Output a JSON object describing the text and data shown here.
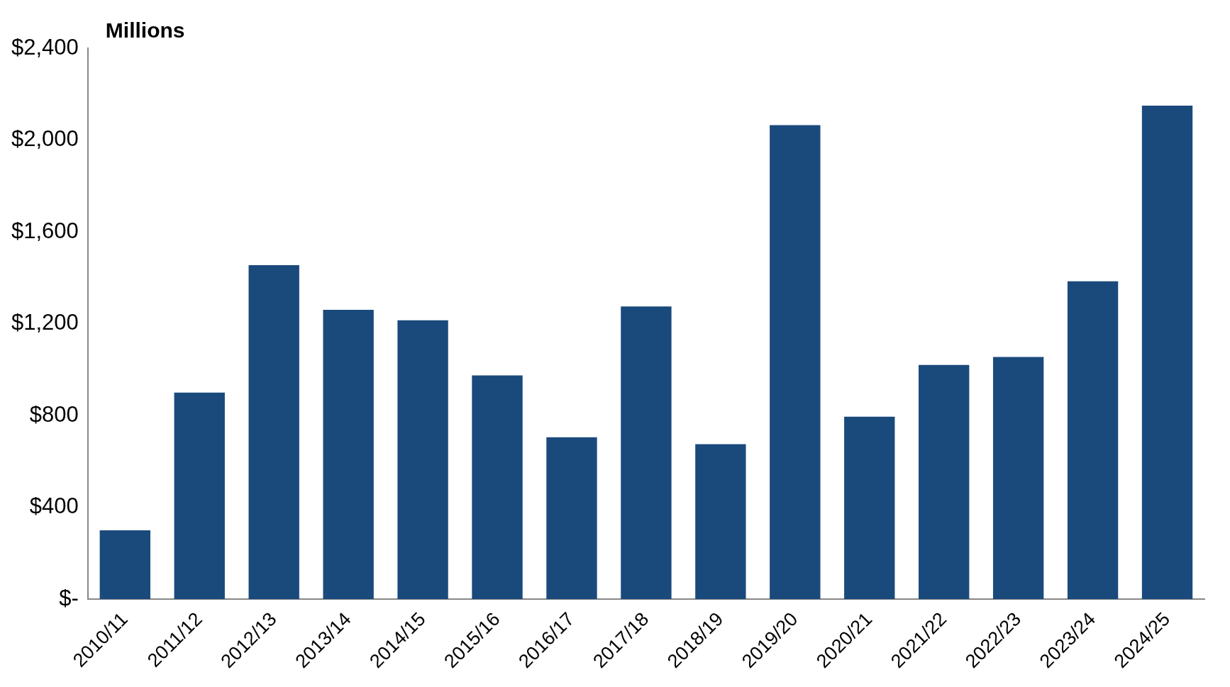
{
  "chart_data": {
    "type": "bar",
    "ylabel": "Millions",
    "categories": [
      "2010/11",
      "2011/12",
      "2012/13",
      "2013/14",
      "2014/15",
      "2015/16",
      "2016/17",
      "2017/18",
      "2018/19",
      "2019/20",
      "2020/21",
      "2021/22",
      "2022/23",
      "2023/24",
      "2024/25"
    ],
    "values": [
      300,
      900,
      1455,
      1260,
      1215,
      975,
      705,
      1275,
      675,
      2065,
      795,
      1020,
      1055,
      1385,
      2150
    ],
    "color": "#1a4a7c",
    "ylim": [
      0,
      2400
    ],
    "yticks": [
      {
        "value": 0,
        "label": "$-"
      },
      {
        "value": 400,
        "label": "$400"
      },
      {
        "value": 800,
        "label": "$800"
      },
      {
        "value": 1200,
        "label": "$1,200"
      },
      {
        "value": 1600,
        "label": "$1,600"
      },
      {
        "value": 2000,
        "label": "$2,000"
      },
      {
        "value": 2400,
        "label": "$2,400"
      }
    ],
    "grid": false
  }
}
